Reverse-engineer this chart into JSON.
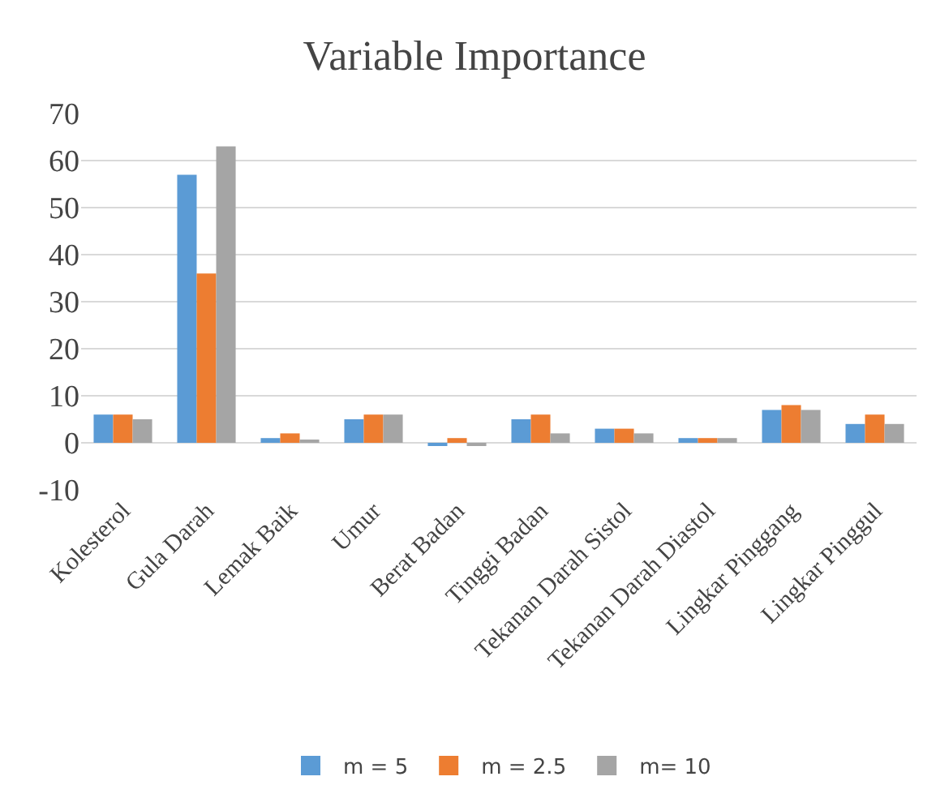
{
  "chart_data": {
    "type": "bar",
    "title": "Variable Importance",
    "categories": [
      "Kolesterol",
      "Gula Darah",
      "Lemak Baik",
      "Umur",
      "Berat Badan",
      "Tinggi Badan",
      "Tekanan Darah Sistol",
      "Tekanan Darah Diastol",
      "Lingkar Pinggang",
      "Lingkar Pinggul"
    ],
    "series": [
      {
        "name": "m = 5",
        "color": "#5b9bd5",
        "values": [
          6,
          57,
          1,
          5,
          -0.5,
          5,
          3,
          1,
          7,
          4
        ]
      },
      {
        "name": "m = 2.5",
        "color": "#ed7d31",
        "values": [
          6,
          36,
          2,
          6,
          1,
          6,
          3,
          1,
          8,
          6
        ]
      },
      {
        "name": "m= 10",
        "color": "#a5a5a5",
        "values": [
          5,
          63,
          0.5,
          6,
          -0.5,
          2,
          2,
          1,
          7,
          4
        ]
      }
    ],
    "ylim": [
      -10,
      70
    ],
    "yticks": [
      -10,
      0,
      10,
      20,
      30,
      40,
      50,
      60,
      70
    ],
    "grid": "y",
    "legend": "bottom"
  }
}
